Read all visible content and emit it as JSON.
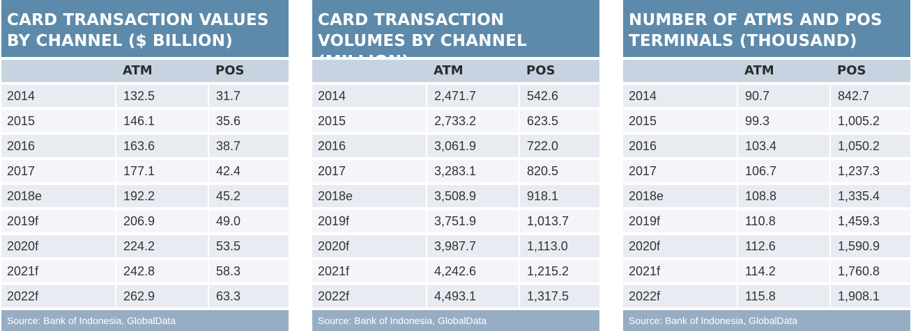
{
  "tables": [
    {
      "title": "CARD TRANSACTION VALUES BY CHANNEL ($ BILLION)",
      "columns": [
        "",
        "ATM",
        "POS"
      ],
      "rows": [
        [
          "2014",
          "132.5",
          "31.7"
        ],
        [
          "2015",
          "146.1",
          "35.6"
        ],
        [
          "2016",
          "163.6",
          "38.7"
        ],
        [
          "2017",
          "177.1",
          "42.4"
        ],
        [
          "2018e",
          "192.2",
          "45.2"
        ],
        [
          "2019f",
          "206.9",
          "49.0"
        ],
        [
          "2020f",
          "224.2",
          "53.5"
        ],
        [
          "2021f",
          "242.8",
          "58.3"
        ],
        [
          "2022f",
          "262.9",
          "63.3"
        ]
      ],
      "source": "Source: Bank of Indonesia, GlobalData"
    },
    {
      "title": "CARD TRANSACTION VOLUMES BY CHANNEL (MILLION)",
      "columns": [
        "",
        "ATM",
        "POS"
      ],
      "rows": [
        [
          "2014",
          "2,471.7",
          "542.6"
        ],
        [
          "2015",
          "2,733.2",
          "623.5"
        ],
        [
          "2016",
          "3,061.9",
          "722.0"
        ],
        [
          "2017",
          "3,283.1",
          "820.5"
        ],
        [
          "2018e",
          "3,508.9",
          "918.1"
        ],
        [
          "2019f",
          "3,751.9",
          "1,013.7"
        ],
        [
          "2020f",
          "3,987.7",
          "1,113.0"
        ],
        [
          "2021f",
          "4,242.6",
          "1,215.2"
        ],
        [
          "2022f",
          "4,493.1",
          "1,317.5"
        ]
      ],
      "source": "Source: Bank of Indonesia, GlobalData"
    },
    {
      "title": "NUMBER OF ATMS AND POS TERMINALS (THOUSAND)",
      "columns": [
        "",
        "ATM",
        "POS"
      ],
      "rows": [
        [
          "2014",
          "90.7",
          "842.7"
        ],
        [
          "2015",
          "99.3",
          "1,005.2"
        ],
        [
          "2016",
          "103.4",
          "1,050.2"
        ],
        [
          "2017",
          "106.7",
          "1,237.3"
        ],
        [
          "2018e",
          "108.8",
          "1,335.4"
        ],
        [
          "2019f",
          "110.8",
          "1,459.3"
        ],
        [
          "2020f",
          "112.6",
          "1,590.9"
        ],
        [
          "2021f",
          "114.2",
          "1,760.8"
        ],
        [
          "2022f",
          "115.8",
          "1,908.1"
        ]
      ],
      "source": "Source: Bank of Indonesia, GlobalData"
    }
  ],
  "colors": {
    "title_bg": "#5d8aaa",
    "header_bg": "#c7d3e0",
    "row_odd": "#e8ecf2",
    "row_even": "#f4f5f8",
    "source_bg": "#97adc4"
  },
  "chart_data": [
    {
      "type": "table",
      "title": "CARD TRANSACTION VALUES BY CHANNEL ($ BILLION)",
      "categories": [
        "2014",
        "2015",
        "2016",
        "2017",
        "2018e",
        "2019f",
        "2020f",
        "2021f",
        "2022f"
      ],
      "series": [
        {
          "name": "ATM",
          "values": [
            132.5,
            146.1,
            163.6,
            177.1,
            192.2,
            206.9,
            224.2,
            242.8,
            262.9
          ]
        },
        {
          "name": "POS",
          "values": [
            31.7,
            35.6,
            38.7,
            42.4,
            45.2,
            49.0,
            53.5,
            58.3,
            63.3
          ]
        }
      ]
    },
    {
      "type": "table",
      "title": "CARD TRANSACTION VOLUMES BY CHANNEL (MILLION)",
      "categories": [
        "2014",
        "2015",
        "2016",
        "2017",
        "2018e",
        "2019f",
        "2020f",
        "2021f",
        "2022f"
      ],
      "series": [
        {
          "name": "ATM",
          "values": [
            2471.7,
            2733.2,
            3061.9,
            3283.1,
            3508.9,
            3751.9,
            3987.7,
            4242.6,
            4493.1
          ]
        },
        {
          "name": "POS",
          "values": [
            542.6,
            623.5,
            722.0,
            820.5,
            918.1,
            1013.7,
            1113.0,
            1215.2,
            1317.5
          ]
        }
      ]
    },
    {
      "type": "table",
      "title": "NUMBER OF ATMS AND POS TERMINALS (THOUSAND)",
      "categories": [
        "2014",
        "2015",
        "2016",
        "2017",
        "2018e",
        "2019f",
        "2020f",
        "2021f",
        "2022f"
      ],
      "series": [
        {
          "name": "ATM",
          "values": [
            90.7,
            99.3,
            103.4,
            106.7,
            108.8,
            110.8,
            112.6,
            114.2,
            115.8
          ]
        },
        {
          "name": "POS",
          "values": [
            842.7,
            1005.2,
            1050.2,
            1237.3,
            1335.4,
            1459.3,
            1590.9,
            1760.8,
            1908.1
          ]
        }
      ]
    }
  ]
}
